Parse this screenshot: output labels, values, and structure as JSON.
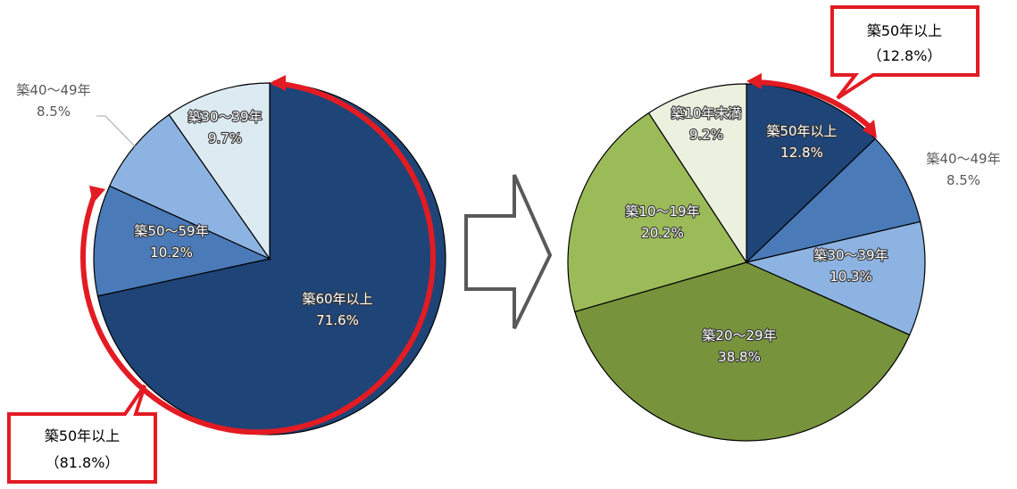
{
  "chart_data": [
    {
      "type": "pie",
      "series": [
        {
          "label": "築60年以上",
          "value": 71.6,
          "color": "#1f4477",
          "pct": "71.6%"
        },
        {
          "label": "築50～59年",
          "value": 10.2,
          "color": "#4a7ab8",
          "pct": "10.2%"
        },
        {
          "label": "築40～49年",
          "value": 8.5,
          "color": "#8db3e2",
          "pct": "8.5%"
        },
        {
          "label": "築30～39年",
          "value": 9.7,
          "color": "#dceaf2",
          "pct": "9.7%"
        }
      ],
      "callout": {
        "title": "築50年以上",
        "value": "（81.8%）"
      }
    },
    {
      "type": "pie",
      "series": [
        {
          "label": "築50年以上",
          "value": 12.8,
          "color": "#1f4477",
          "pct": "12.8%"
        },
        {
          "label": "築40～49年",
          "value": 8.5,
          "color": "#4a7ab8",
          "pct": "8.5%"
        },
        {
          "label": "築30～39年",
          "value": 10.3,
          "color": "#8db3e2",
          "pct": "10.3%"
        },
        {
          "label": "築20～29年",
          "value": 38.8,
          "color": "#77933c",
          "pct": "38.8%"
        },
        {
          "label": "築10～19年",
          "value": 20.2,
          "color": "#9bbb59",
          "pct": "20.2%"
        },
        {
          "label": "築10年未満",
          "value": 9.2,
          "color": "#ebf1de",
          "pct": "9.2%"
        }
      ],
      "callout": {
        "title": "築50年以上",
        "value": "（12.8%）"
      }
    }
  ],
  "colors": {
    "highlight": "#e31b23",
    "arrow_outline": "#595959"
  }
}
